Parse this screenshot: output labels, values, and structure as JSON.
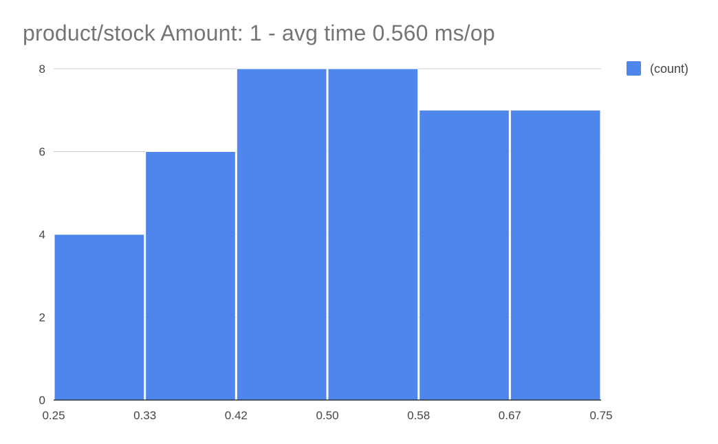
{
  "chart_data": {
    "type": "bar",
    "title": "product/stock Amount: 1 - avg time 0.560 ms/op",
    "x_ticks": [
      "0.25",
      "0.33",
      "0.42",
      "0.50",
      "0.58",
      "0.67",
      "0.75"
    ],
    "y_ticks": [
      "0",
      "2",
      "4",
      "6",
      "8"
    ],
    "ylim": [
      0,
      8
    ],
    "grid": true,
    "legend_position": "top-right",
    "series": [
      {
        "name": "(count)",
        "color": "#4f86ec",
        "values": [
          4,
          6,
          8,
          8,
          7,
          7
        ]
      }
    ]
  }
}
